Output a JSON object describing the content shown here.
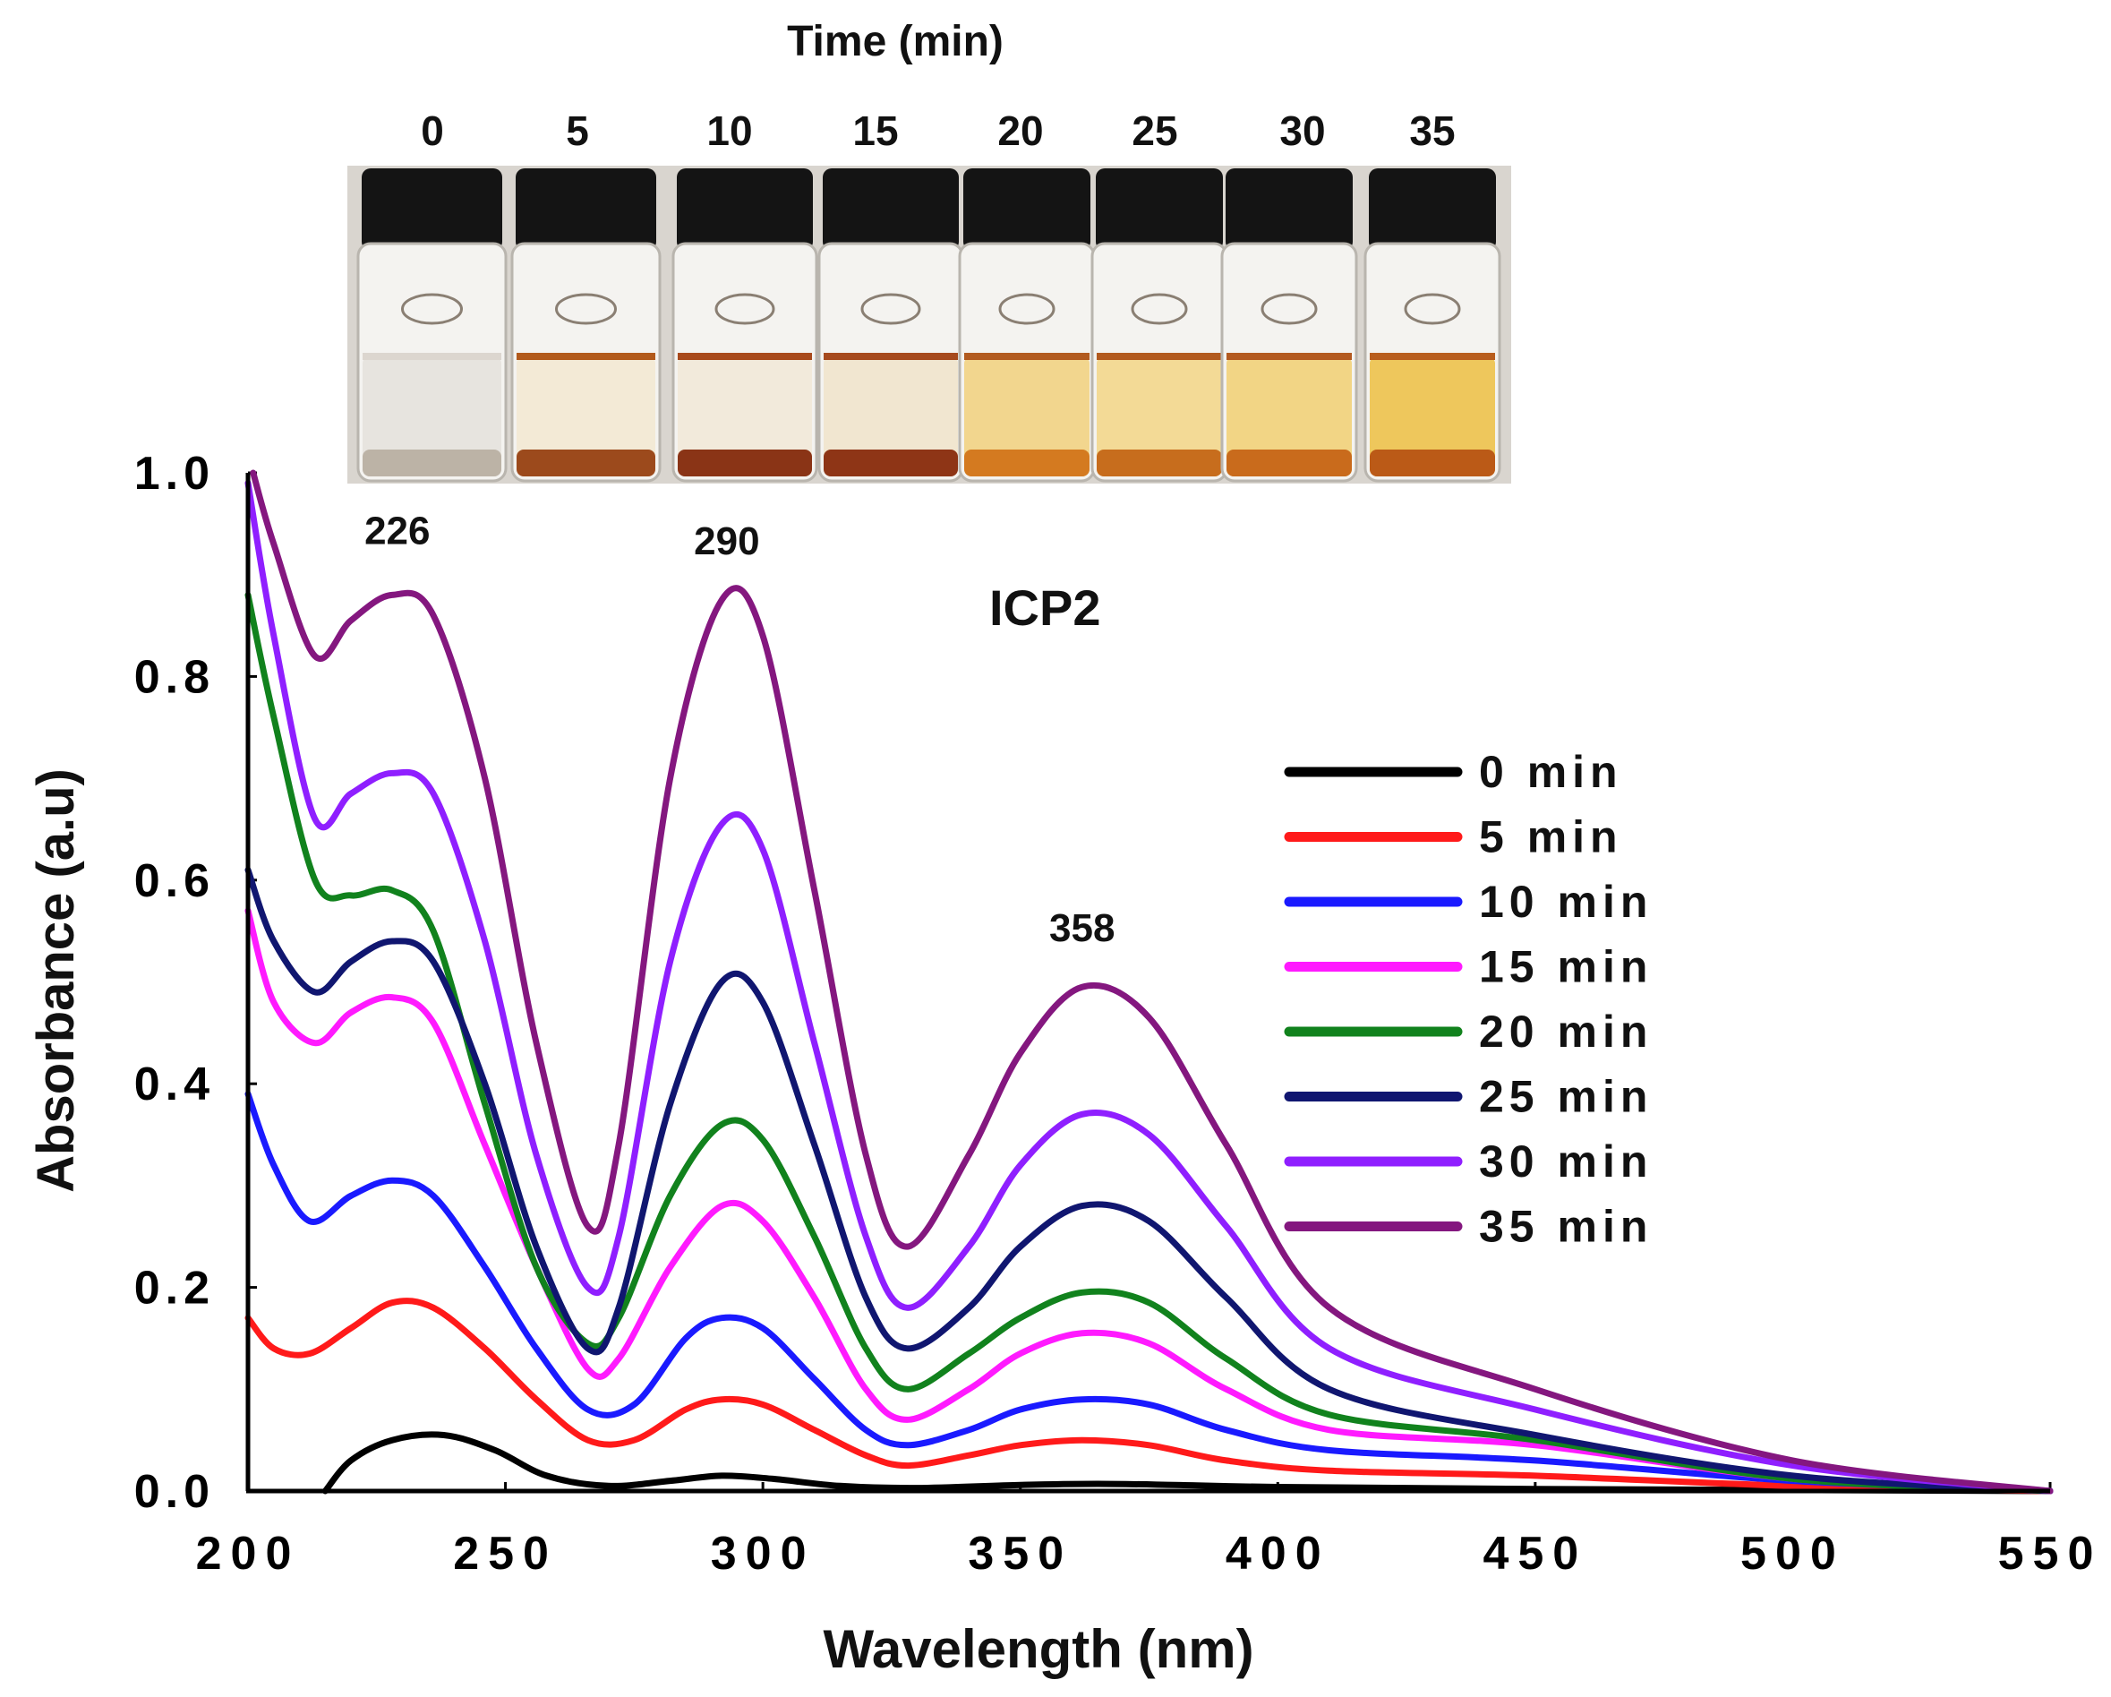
{
  "photo": {
    "heading": "Time  (min)",
    "time_labels": [
      "0",
      "5",
      "10",
      "15",
      "20",
      "25",
      "30",
      "35"
    ],
    "vial_liquid_colors": [
      "#e7e4df",
      "#f3ead6",
      "#f2eadb",
      "#f1e6d0",
      "#f2d68e",
      "#f3da96",
      "#f2d585",
      "#eec75c"
    ],
    "vial_bottom_colors": [
      "#bcb3a6",
      "#9c4a1c",
      "#8a3416",
      "#8e3516",
      "#d47a20",
      "#c76d1d",
      "#c96b1c",
      "#bb5a17"
    ],
    "vial_surface_colors": [
      "#dcd6cf",
      "#b25a1c",
      "#a84a1c",
      "#a64a1e",
      "#b25b20",
      "#b25a1e",
      "#b35a20",
      "#b85e1e"
    ]
  },
  "chart_data": {
    "type": "line",
    "title": "ICP2",
    "xlabel": "Wavelength (nm)",
    "ylabel": "Absorbance (a.u)",
    "xlim": [
      200,
      550
    ],
    "ylim": [
      0,
      1.0
    ],
    "xticks": [
      "200",
      "250",
      "300",
      "350",
      "400",
      "450",
      "500",
      "550"
    ],
    "yticks": [
      "0.0",
      "0.2",
      "0.4",
      "0.6",
      "0.8",
      "1.0"
    ],
    "annotations": [
      {
        "text": "226",
        "x": 229,
        "y": 0.93
      },
      {
        "text": "290",
        "x": 293,
        "y": 0.92
      },
      {
        "text": "358",
        "x": 362,
        "y": 0.54
      }
    ],
    "legend_position": "right",
    "series": [
      {
        "name": "0 min",
        "color": "#000000",
        "points": [
          [
            215,
            0
          ],
          [
            220,
            0.03
          ],
          [
            228,
            0.05
          ],
          [
            238,
            0.055
          ],
          [
            248,
            0.04
          ],
          [
            258,
            0.015
          ],
          [
            270,
            0.005
          ],
          [
            282,
            0.01
          ],
          [
            292,
            0.015
          ],
          [
            302,
            0.012
          ],
          [
            315,
            0.005
          ],
          [
            330,
            0.003
          ],
          [
            350,
            0.006
          ],
          [
            365,
            0.007
          ],
          [
            380,
            0.006
          ],
          [
            400,
            0.004
          ],
          [
            450,
            0.002
          ],
          [
            550,
            0.0
          ]
        ]
      },
      {
        "name": "5 min",
        "color": "#ff1a1a",
        "points": [
          [
            200,
            0.17
          ],
          [
            205,
            0.14
          ],
          [
            212,
            0.135
          ],
          [
            220,
            0.16
          ],
          [
            228,
            0.185
          ],
          [
            236,
            0.18
          ],
          [
            246,
            0.14
          ],
          [
            256,
            0.09
          ],
          [
            266,
            0.05
          ],
          [
            275,
            0.05
          ],
          [
            285,
            0.08
          ],
          [
            292,
            0.09
          ],
          [
            300,
            0.085
          ],
          [
            310,
            0.06
          ],
          [
            320,
            0.035
          ],
          [
            328,
            0.025
          ],
          [
            340,
            0.035
          ],
          [
            350,
            0.045
          ],
          [
            362,
            0.05
          ],
          [
            375,
            0.045
          ],
          [
            390,
            0.03
          ],
          [
            410,
            0.02
          ],
          [
            450,
            0.015
          ],
          [
            500,
            0.005
          ],
          [
            550,
            0.0
          ]
        ]
      },
      {
        "name": "10 min",
        "color": "#1a1aff",
        "points": [
          [
            200,
            0.39
          ],
          [
            205,
            0.32
          ],
          [
            212,
            0.265
          ],
          [
            220,
            0.29
          ],
          [
            228,
            0.305
          ],
          [
            236,
            0.29
          ],
          [
            246,
            0.22
          ],
          [
            256,
            0.14
          ],
          [
            266,
            0.08
          ],
          [
            275,
            0.085
          ],
          [
            285,
            0.15
          ],
          [
            292,
            0.17
          ],
          [
            300,
            0.16
          ],
          [
            310,
            0.11
          ],
          [
            320,
            0.06
          ],
          [
            328,
            0.045
          ],
          [
            340,
            0.06
          ],
          [
            350,
            0.08
          ],
          [
            362,
            0.09
          ],
          [
            375,
            0.085
          ],
          [
            390,
            0.06
          ],
          [
            410,
            0.04
          ],
          [
            450,
            0.03
          ],
          [
            500,
            0.01
          ],
          [
            550,
            0.0
          ]
        ]
      },
      {
        "name": "15 min",
        "color": "#ff1aff",
        "points": [
          [
            200,
            0.57
          ],
          [
            205,
            0.48
          ],
          [
            213,
            0.44
          ],
          [
            220,
            0.47
          ],
          [
            228,
            0.485
          ],
          [
            236,
            0.46
          ],
          [
            246,
            0.34
          ],
          [
            256,
            0.22
          ],
          [
            266,
            0.12
          ],
          [
            272,
            0.13
          ],
          [
            282,
            0.22
          ],
          [
            292,
            0.28
          ],
          [
            300,
            0.265
          ],
          [
            310,
            0.19
          ],
          [
            320,
            0.1
          ],
          [
            328,
            0.07
          ],
          [
            340,
            0.1
          ],
          [
            350,
            0.135
          ],
          [
            362,
            0.155
          ],
          [
            375,
            0.145
          ],
          [
            390,
            0.1
          ],
          [
            410,
            0.06
          ],
          [
            450,
            0.045
          ],
          [
            500,
            0.012
          ],
          [
            550,
            0.0
          ]
        ]
      },
      {
        "name": "20 min",
        "color": "#11821d",
        "points": [
          [
            200,
            0.88
          ],
          [
            205,
            0.76
          ],
          [
            213,
            0.6
          ],
          [
            220,
            0.585
          ],
          [
            228,
            0.59
          ],
          [
            236,
            0.55
          ],
          [
            246,
            0.38
          ],
          [
            256,
            0.22
          ],
          [
            266,
            0.145
          ],
          [
            272,
            0.17
          ],
          [
            282,
            0.29
          ],
          [
            292,
            0.36
          ],
          [
            300,
            0.345
          ],
          [
            310,
            0.25
          ],
          [
            320,
            0.14
          ],
          [
            328,
            0.1
          ],
          [
            340,
            0.135
          ],
          [
            350,
            0.17
          ],
          [
            362,
            0.195
          ],
          [
            375,
            0.185
          ],
          [
            390,
            0.13
          ],
          [
            410,
            0.075
          ],
          [
            450,
            0.05
          ],
          [
            500,
            0.012
          ],
          [
            550,
            0.0
          ]
        ]
      },
      {
        "name": "25 min",
        "color": "#101670",
        "points": [
          [
            200,
            0.61
          ],
          [
            205,
            0.54
          ],
          [
            213,
            0.49
          ],
          [
            220,
            0.52
          ],
          [
            228,
            0.54
          ],
          [
            236,
            0.52
          ],
          [
            246,
            0.4
          ],
          [
            256,
            0.24
          ],
          [
            266,
            0.14
          ],
          [
            272,
            0.18
          ],
          [
            282,
            0.38
          ],
          [
            292,
            0.5
          ],
          [
            300,
            0.48
          ],
          [
            310,
            0.34
          ],
          [
            320,
            0.19
          ],
          [
            328,
            0.14
          ],
          [
            340,
            0.18
          ],
          [
            350,
            0.24
          ],
          [
            362,
            0.28
          ],
          [
            375,
            0.265
          ],
          [
            390,
            0.19
          ],
          [
            410,
            0.1
          ],
          [
            450,
            0.055
          ],
          [
            500,
            0.015
          ],
          [
            550,
            0.0
          ]
        ]
      },
      {
        "name": "30 min",
        "color": "#8f1fff",
        "points": [
          [
            200,
            0.99
          ],
          [
            205,
            0.84
          ],
          [
            213,
            0.66
          ],
          [
            220,
            0.685
          ],
          [
            228,
            0.705
          ],
          [
            236,
            0.685
          ],
          [
            246,
            0.54
          ],
          [
            256,
            0.33
          ],
          [
            266,
            0.2
          ],
          [
            272,
            0.25
          ],
          [
            282,
            0.52
          ],
          [
            292,
            0.655
          ],
          [
            300,
            0.63
          ],
          [
            310,
            0.44
          ],
          [
            320,
            0.25
          ],
          [
            328,
            0.18
          ],
          [
            340,
            0.24
          ],
          [
            350,
            0.32
          ],
          [
            362,
            0.37
          ],
          [
            375,
            0.35
          ],
          [
            390,
            0.26
          ],
          [
            410,
            0.14
          ],
          [
            450,
            0.08
          ],
          [
            500,
            0.025
          ],
          [
            550,
            0.0
          ]
        ]
      },
      {
        "name": "35 min",
        "color": "#84177f",
        "points": [
          [
            201,
            1.0
          ],
          [
            205,
            0.93
          ],
          [
            213,
            0.82
          ],
          [
            220,
            0.855
          ],
          [
            228,
            0.88
          ],
          [
            236,
            0.86
          ],
          [
            246,
            0.7
          ],
          [
            256,
            0.44
          ],
          [
            266,
            0.26
          ],
          [
            272,
            0.34
          ],
          [
            282,
            0.7
          ],
          [
            292,
            0.875
          ],
          [
            300,
            0.84
          ],
          [
            310,
            0.59
          ],
          [
            320,
            0.33
          ],
          [
            328,
            0.24
          ],
          [
            340,
            0.33
          ],
          [
            350,
            0.43
          ],
          [
            362,
            0.495
          ],
          [
            375,
            0.465
          ],
          [
            390,
            0.34
          ],
          [
            410,
            0.18
          ],
          [
            450,
            0.1
          ],
          [
            500,
            0.03
          ],
          [
            550,
            0.0
          ]
        ]
      }
    ]
  }
}
